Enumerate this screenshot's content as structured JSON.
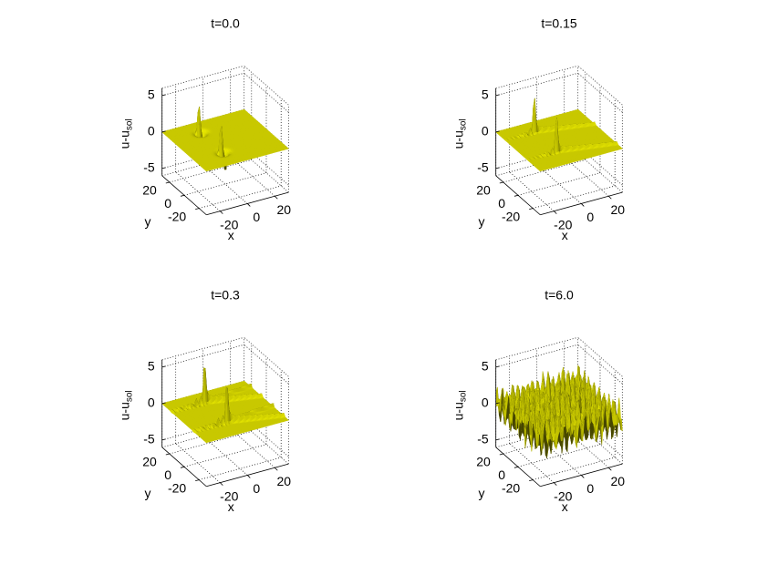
{
  "chart_data": [
    {
      "type": "surface3d",
      "title": "t=0.0",
      "xlabel": "x",
      "ylabel": "y",
      "zlabel": "u-u",
      "zlabel_sub": "sol",
      "xlim": [
        -30,
        30
      ],
      "ylim": [
        -30,
        30
      ],
      "zlim": [
        -6,
        6
      ],
      "xticks": [
        -20,
        0,
        20
      ],
      "yticks": [
        -20,
        0,
        20
      ],
      "zticks": [
        -5,
        0,
        5
      ],
      "color": "#c8c800",
      "grid": true
    },
    {
      "type": "surface3d",
      "title": "t=0.15",
      "xlabel": "x",
      "ylabel": "y",
      "zlabel": "u-u",
      "zlabel_sub": "sol",
      "xlim": [
        -30,
        30
      ],
      "ylim": [
        -30,
        30
      ],
      "zlim": [
        -6,
        6
      ],
      "xticks": [
        -20,
        0,
        20
      ],
      "yticks": [
        -20,
        0,
        20
      ],
      "zticks": [
        -5,
        0,
        5
      ],
      "color": "#c8c800",
      "grid": true
    },
    {
      "type": "surface3d",
      "title": "t=0.3",
      "xlabel": "x",
      "ylabel": "y",
      "zlabel": "u-u",
      "zlabel_sub": "sol",
      "xlim": [
        -30,
        30
      ],
      "ylim": [
        -30,
        30
      ],
      "zlim": [
        -6,
        6
      ],
      "xticks": [
        -20,
        0,
        20
      ],
      "yticks": [
        -20,
        0,
        20
      ],
      "zticks": [
        -5,
        0,
        5
      ],
      "color": "#c8c800",
      "grid": true
    },
    {
      "type": "surface3d",
      "title": "t=6.0",
      "xlabel": "x",
      "ylabel": "y",
      "zlabel": "u-u",
      "zlabel_sub": "sol",
      "xlim": [
        -30,
        30
      ],
      "ylim": [
        -30,
        30
      ],
      "zlim": [
        -6,
        6
      ],
      "xticks": [
        -20,
        0,
        20
      ],
      "yticks": [
        -20,
        0,
        20
      ],
      "zticks": [
        -5,
        0,
        5
      ],
      "color": "#c8c800",
      "grid": true
    }
  ]
}
